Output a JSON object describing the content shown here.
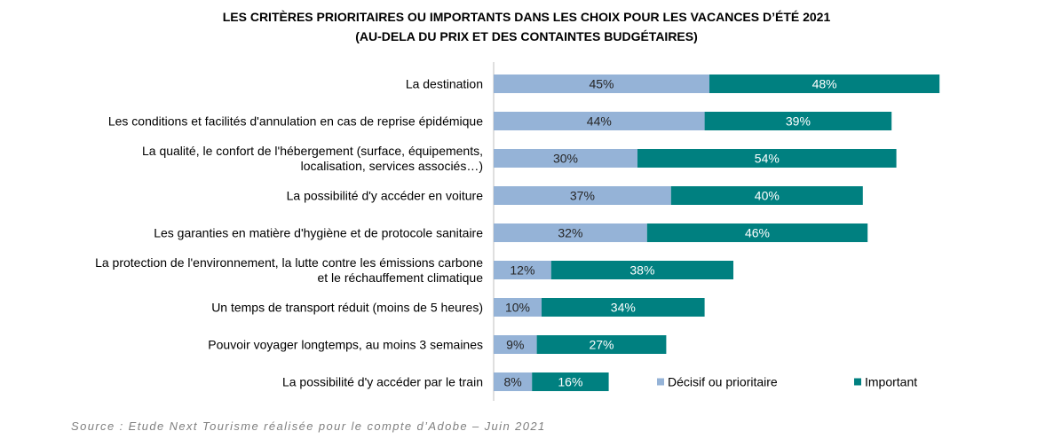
{
  "title": "LES CRITÈRES PRIORITAIRES OU IMPORTANTS DANS LES CHOIX POUR LES VACANCES D’ÉTÉ 2021",
  "subtitle": "(AU-DELA DU PRIX ET DES CONTAINTES BUDGÉTAIRES)",
  "source": "Source : Etude Next Tourisme réalisée pour le compte d’Adobe – Juin 2021",
  "chart_data": {
    "type": "bar",
    "orientation": "horizontal",
    "stacked": true,
    "title": "LES CRITÈRES PRIORITAIRES OU IMPORTANTS DANS LES CHOIX POUR LES VACANCES D’ÉTÉ 2021",
    "subtitle": "(AU-DELA DU PRIX ET DES CONTAINTES BUDGÉTAIRES)",
    "xlabel": "",
    "ylabel": "",
    "xlim": [
      0,
      100
    ],
    "grid": false,
    "legend": "bottom-right",
    "categories": [
      [
        "La destination"
      ],
      [
        "Les conditions et facilités d'annulation en cas de reprise épidémique"
      ],
      [
        "La qualité, le confort de l'hébergement (surface, équipements,",
        "localisation, services associés…)"
      ],
      [
        "La possibilité d'y accéder en voiture"
      ],
      [
        "Les garanties en matière d'hygiène et de protocole sanitaire"
      ],
      [
        "La protection de l'environnement, la lutte contre les émissions carbone",
        "et le réchauffement climatique"
      ],
      [
        "Un temps de transport réduit (moins de 5 heures)"
      ],
      [
        "Pouvoir voyager longtemps, au moins 3 semaines"
      ],
      [
        "La possibilité d'y accéder par le train"
      ]
    ],
    "series": [
      {
        "name": "Décisif ou prioritaire",
        "color": "#95b3d7",
        "values": [
          45,
          44,
          30,
          37,
          32,
          12,
          10,
          9,
          8
        ],
        "labels": [
          "45%",
          "44%",
          "30%",
          "37%",
          "32%",
          "12%",
          "10%",
          "9%",
          "8%"
        ]
      },
      {
        "name": "Important",
        "color": "#008080",
        "values": [
          48,
          39,
          54,
          40,
          46,
          38,
          34,
          27,
          16
        ],
        "labels": [
          "48%",
          "39%",
          "54%",
          "40%",
          "46%",
          "38%",
          "34%",
          "27%",
          "16%"
        ]
      }
    ]
  }
}
